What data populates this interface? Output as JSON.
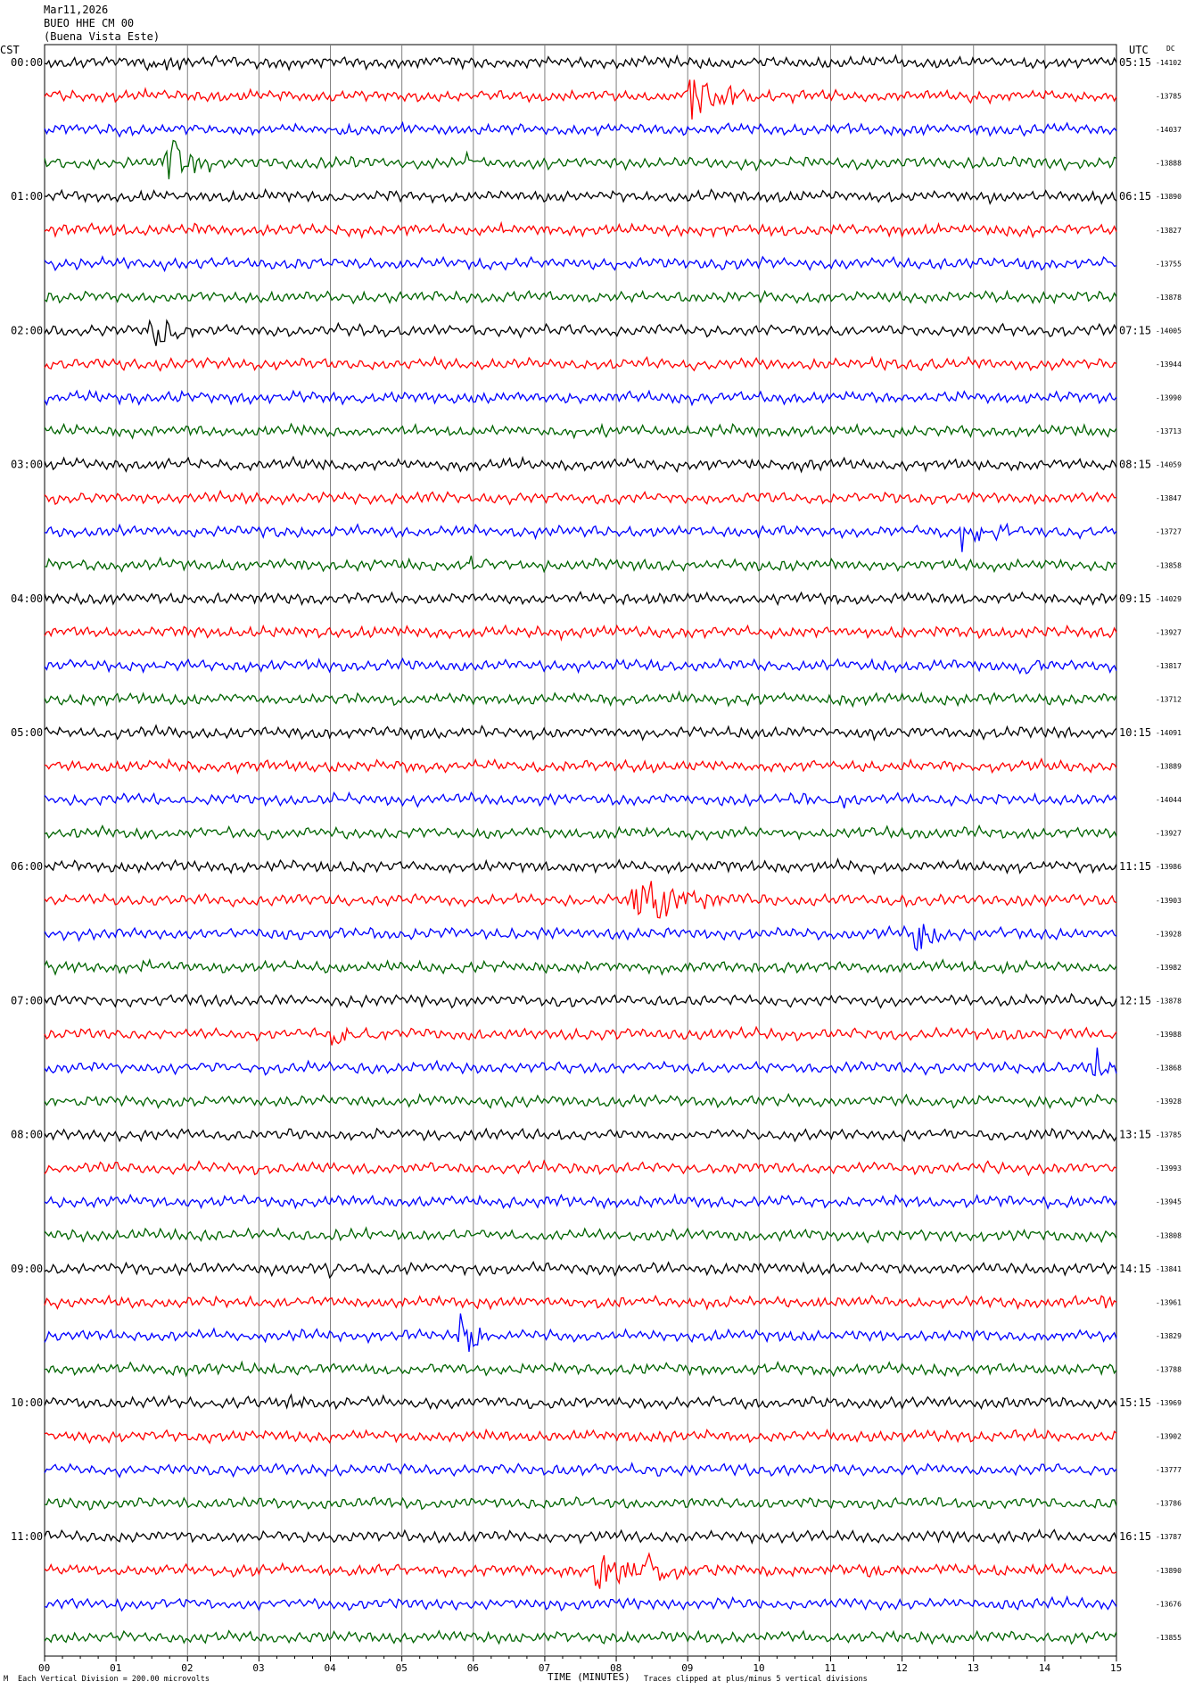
{
  "header": {
    "date": "Mar11,2026",
    "station": "BUEO HHE CM 00",
    "location": "(Buena Vista Este)"
  },
  "left_tz": "CST",
  "right_tz": "UTC",
  "dc_label": "DC",
  "footer": {
    "scale": "Each Vertical Division = 200.00 microvolts",
    "xlabel": "TIME (MINUTES)",
    "clip": "Traces clipped at plus/minus 5 vertical divisions"
  },
  "colors": {
    "cycle": [
      "#000000",
      "#ff0000",
      "#0000ff",
      "#006400"
    ],
    "grid": "#808080"
  },
  "chart_data": {
    "type": "line",
    "subtype": "helicorder",
    "x_ticks": [
      "00",
      "01",
      "02",
      "03",
      "04",
      "05",
      "06",
      "07",
      "08",
      "09",
      "10",
      "11",
      "12",
      "13",
      "14",
      "15"
    ],
    "xlim": [
      0,
      15
    ],
    "minutes_per_line": 15,
    "rows": [
      {
        "left": "00:00",
        "right": "05:15",
        "dc": "-14102"
      },
      {
        "left": "",
        "right": "",
        "dc": "-13785"
      },
      {
        "left": "",
        "right": "",
        "dc": "-14037"
      },
      {
        "left": "",
        "right": "",
        "dc": "-13888"
      },
      {
        "left": "01:00",
        "right": "06:15",
        "dc": "-13890"
      },
      {
        "left": "",
        "right": "",
        "dc": "-13827"
      },
      {
        "left": "",
        "right": "",
        "dc": "-13755"
      },
      {
        "left": "",
        "right": "",
        "dc": "-13878"
      },
      {
        "left": "02:00",
        "right": "07:15",
        "dc": "-14005"
      },
      {
        "left": "",
        "right": "",
        "dc": "-13944"
      },
      {
        "left": "",
        "right": "",
        "dc": "-13990"
      },
      {
        "left": "",
        "right": "",
        "dc": "-13713"
      },
      {
        "left": "03:00",
        "right": "08:15",
        "dc": "-14059"
      },
      {
        "left": "",
        "right": "",
        "dc": "-13847"
      },
      {
        "left": "",
        "right": "",
        "dc": "-13727"
      },
      {
        "left": "",
        "right": "",
        "dc": "-13858"
      },
      {
        "left": "04:00",
        "right": "09:15",
        "dc": "-14029"
      },
      {
        "left": "",
        "right": "",
        "dc": "-13927"
      },
      {
        "left": "",
        "right": "",
        "dc": "-13817"
      },
      {
        "left": "",
        "right": "",
        "dc": "-13712"
      },
      {
        "left": "05:00",
        "right": "10:15",
        "dc": "-14091"
      },
      {
        "left": "",
        "right": "",
        "dc": "-13889"
      },
      {
        "left": "",
        "right": "",
        "dc": "-14044"
      },
      {
        "left": "",
        "right": "",
        "dc": "-13927"
      },
      {
        "left": "06:00",
        "right": "11:15",
        "dc": "-13986"
      },
      {
        "left": "",
        "right": "",
        "dc": "-13903"
      },
      {
        "left": "",
        "right": "",
        "dc": "-13928"
      },
      {
        "left": "",
        "right": "",
        "dc": "-13982"
      },
      {
        "left": "07:00",
        "right": "12:15",
        "dc": "-13878"
      },
      {
        "left": "",
        "right": "",
        "dc": "-13988"
      },
      {
        "left": "",
        "right": "",
        "dc": "-13868"
      },
      {
        "left": "",
        "right": "",
        "dc": "-13928"
      },
      {
        "left": "08:00",
        "right": "13:15",
        "dc": "-13785"
      },
      {
        "left": "",
        "right": "",
        "dc": "-13993"
      },
      {
        "left": "",
        "right": "",
        "dc": "-13945"
      },
      {
        "left": "",
        "right": "",
        "dc": "-13808"
      },
      {
        "left": "09:00",
        "right": "14:15",
        "dc": "-13841"
      },
      {
        "left": "",
        "right": "",
        "dc": "-13961"
      },
      {
        "left": "",
        "right": "",
        "dc": "-13829"
      },
      {
        "left": "",
        "right": "",
        "dc": "-13788"
      },
      {
        "left": "10:00",
        "right": "15:15",
        "dc": "-13969"
      },
      {
        "left": "",
        "right": "",
        "dc": "-13902"
      },
      {
        "left": "",
        "right": "",
        "dc": "-13777"
      },
      {
        "left": "",
        "right": "",
        "dc": "-13786"
      },
      {
        "left": "11:00",
        "right": "16:15",
        "dc": "-13787"
      },
      {
        "left": "",
        "right": "",
        "dc": "-13890"
      },
      {
        "left": "",
        "right": "",
        "dc": "-13676"
      },
      {
        "left": "",
        "right": "",
        "dc": "-13855"
      }
    ],
    "events": [
      {
        "row": 0,
        "t": 1.4,
        "amp": 2.2,
        "dur": 0.5
      },
      {
        "row": 1,
        "t": 9.0,
        "amp": 4.5,
        "dur": 0.8
      },
      {
        "row": 3,
        "t": 1.7,
        "amp": 4.5,
        "dur": 0.5
      },
      {
        "row": 3,
        "t": 5.9,
        "amp": 1.0,
        "dur": 0.4
      },
      {
        "row": 5,
        "t": 6.3,
        "amp": 1.2,
        "dur": 0.3
      },
      {
        "row": 8,
        "t": 1.5,
        "amp": 3.0,
        "dur": 0.5
      },
      {
        "row": 9,
        "t": 11.6,
        "amp": 0.8,
        "dur": 0.3
      },
      {
        "row": 9,
        "t": 12.8,
        "amp": 0.6,
        "dur": 0.2
      },
      {
        "row": 11,
        "t": 7.8,
        "amp": 0.8,
        "dur": 0.3
      },
      {
        "row": 14,
        "t": 12.8,
        "amp": 3.0,
        "dur": 0.6
      },
      {
        "row": 15,
        "t": 5.9,
        "amp": 1.2,
        "dur": 0.4
      },
      {
        "row": 15,
        "t": 3.6,
        "amp": 0.6,
        "dur": 0.2
      },
      {
        "row": 18,
        "t": 13.6,
        "amp": 1.4,
        "dur": 0.4
      },
      {
        "row": 22,
        "t": 10.4,
        "amp": 0.8,
        "dur": 0.7
      },
      {
        "row": 22,
        "t": 11.0,
        "amp": 0.8,
        "dur": 0.5
      },
      {
        "row": 25,
        "t": 8.2,
        "amp": 4.5,
        "dur": 1.2
      },
      {
        "row": 26,
        "t": 12.2,
        "amp": 3.0,
        "dur": 0.5
      },
      {
        "row": 27,
        "t": 1.3,
        "amp": 0.8,
        "dur": 0.6
      },
      {
        "row": 27,
        "t": 0.1,
        "amp": 0.6,
        "dur": 0.3
      },
      {
        "row": 29,
        "t": 4.0,
        "amp": 1.6,
        "dur": 0.9
      },
      {
        "row": 30,
        "t": 14.7,
        "amp": 2.5,
        "dur": 0.4
      },
      {
        "row": 31,
        "t": 0.2,
        "amp": 0.6,
        "dur": 0.3
      },
      {
        "row": 36,
        "t": 4.0,
        "amp": 1.2,
        "dur": 0.3
      },
      {
        "row": 36,
        "t": 10.5,
        "amp": 0.6,
        "dur": 0.5
      },
      {
        "row": 37,
        "t": 10.8,
        "amp": 0.6,
        "dur": 0.3
      },
      {
        "row": 37,
        "t": 14.8,
        "amp": 1.2,
        "dur": 0.3
      },
      {
        "row": 38,
        "t": 5.8,
        "amp": 3.5,
        "dur": 0.6
      },
      {
        "row": 38,
        "t": 14.1,
        "amp": 0.8,
        "dur": 0.3
      },
      {
        "row": 40,
        "t": 3.4,
        "amp": 1.0,
        "dur": 0.6
      },
      {
        "row": 40,
        "t": 6.2,
        "amp": 0.8,
        "dur": 0.3
      },
      {
        "row": 44,
        "t": 13.7,
        "amp": 0.8,
        "dur": 0.2
      },
      {
        "row": 44,
        "t": 6.8,
        "amp": 0.6,
        "dur": 0.2
      },
      {
        "row": 45,
        "t": 7.7,
        "amp": 2.5,
        "dur": 0.9
      },
      {
        "row": 45,
        "t": 8.4,
        "amp": 2.5,
        "dur": 0.7
      },
      {
        "row": 45,
        "t": 11.5,
        "amp": 0.6,
        "dur": 0.7
      },
      {
        "row": 45,
        "t": 10.0,
        "amp": 0.4,
        "dur": 0.3
      }
    ]
  }
}
